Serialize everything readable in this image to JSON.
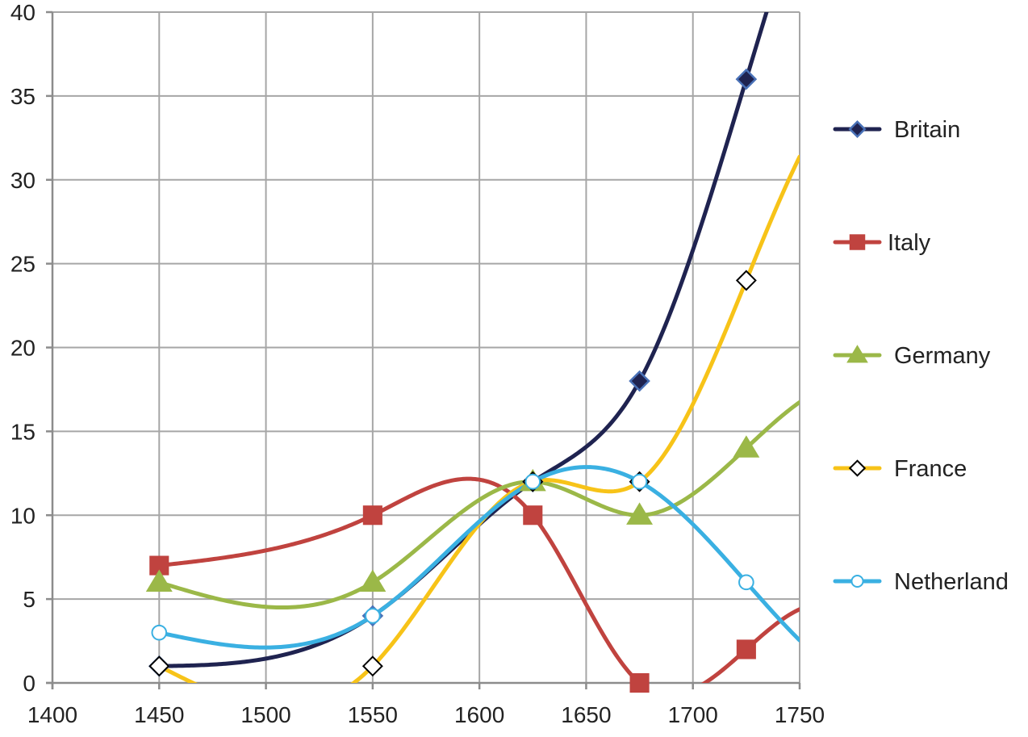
{
  "chart_data": {
    "type": "line",
    "title": "",
    "xlabel": "",
    "ylabel": "",
    "xlim": [
      1400,
      1750
    ],
    "ylim": [
      0,
      40
    ],
    "x_ticks": [
      1400,
      1450,
      1500,
      1550,
      1600,
      1650,
      1700,
      1750
    ],
    "y_ticks": [
      0,
      5,
      10,
      15,
      20,
      25,
      30,
      35,
      40
    ],
    "grid": true,
    "smooth": true,
    "legend_position": "right",
    "x": [
      1450,
      1550,
      1625,
      1675,
      1725
    ],
    "series": [
      {
        "name": "Britain",
        "values": [
          1,
          4,
          12,
          18,
          36
        ],
        "color": "#1f2350",
        "marker": "filled-diamond",
        "marker_fill": "#1f2350",
        "marker_stroke": "#4a72b8"
      },
      {
        "name": "Italy",
        "values": [
          7,
          10,
          10,
          0,
          2
        ],
        "color": "#c0433f",
        "marker": "square",
        "marker_fill": "#c0433f",
        "marker_stroke": "#c0433f"
      },
      {
        "name": "Germany",
        "values": [
          6,
          6,
          12,
          10,
          14
        ],
        "color": "#9bb848",
        "marker": "triangle",
        "marker_fill": "#9bb848",
        "marker_stroke": "#9bb848"
      },
      {
        "name": "France",
        "values": [
          1,
          1,
          12,
          12,
          24
        ],
        "color": "#f7c318",
        "marker": "open-diamond",
        "marker_fill": "#ffffff",
        "marker_stroke": "#000000"
      },
      {
        "name": "Netherland",
        "values": [
          3,
          4,
          12,
          12,
          6
        ],
        "color": "#3ab0e2",
        "marker": "circle",
        "marker_fill": "#ffffff",
        "marker_stroke": "#3ab0e2"
      }
    ]
  }
}
